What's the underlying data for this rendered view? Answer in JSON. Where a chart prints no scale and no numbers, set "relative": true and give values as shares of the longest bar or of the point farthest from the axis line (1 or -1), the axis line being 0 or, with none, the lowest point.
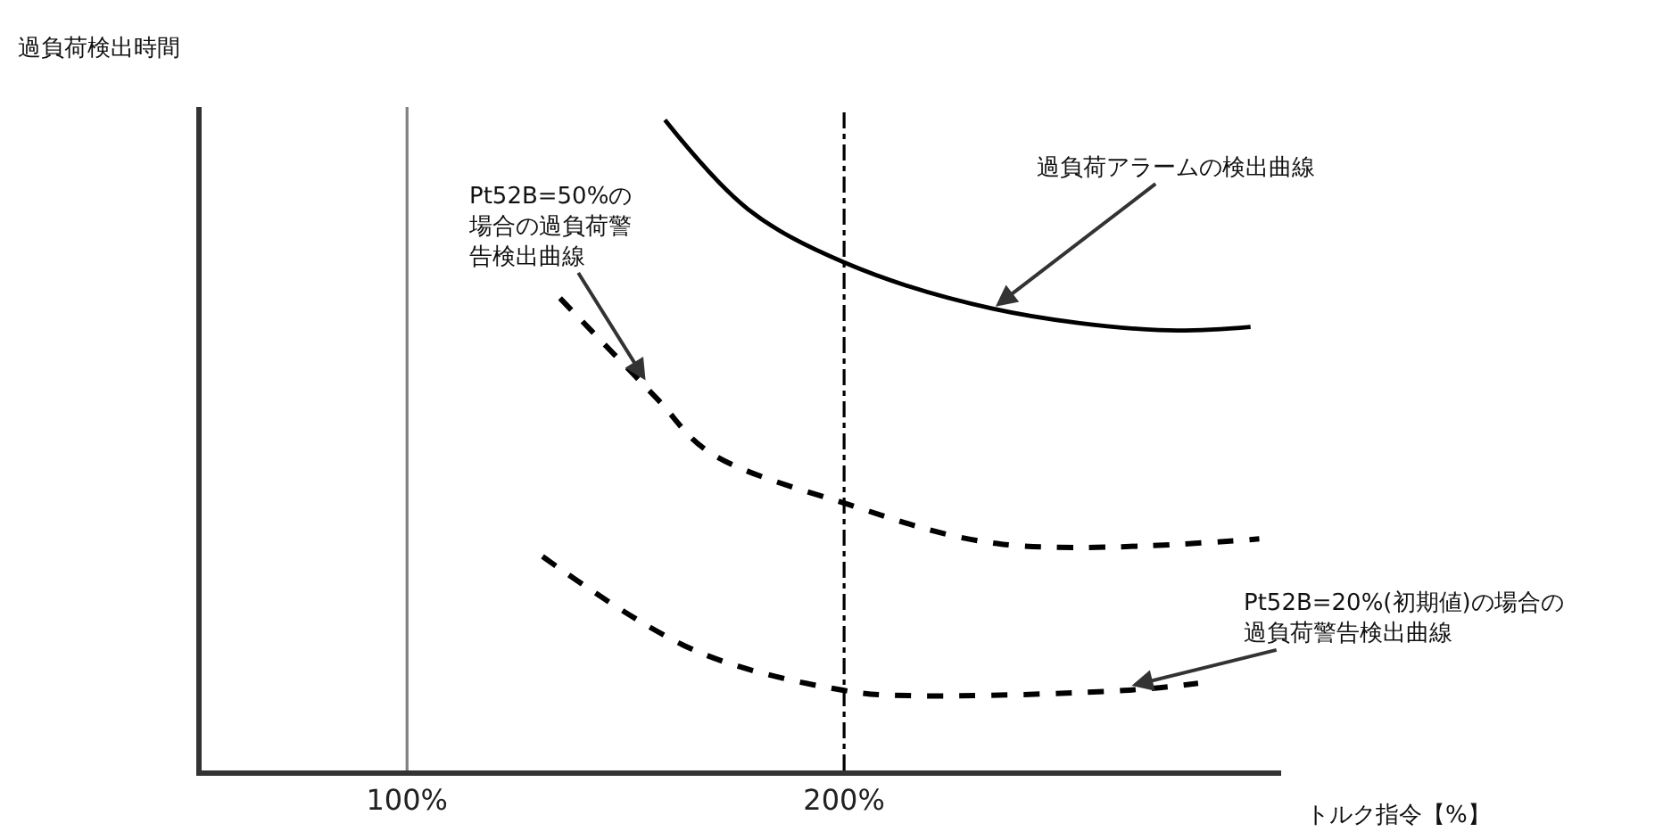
{
  "chart_data": {
    "type": "line",
    "relative": true,
    "xlabel": "トルク指令【%】",
    "ylabel": "過負荷検出時間",
    "xlim": [
      53,
      300
    ],
    "xticks": [
      {
        "value": 100,
        "label": "100%"
      },
      {
        "value": 200,
        "label": "200%"
      }
    ],
    "series": [
      {
        "color": "#000000",
        "line_style": "solid",
        "x": [
          159,
          178,
          200,
          234,
          272,
          293
        ],
        "values": [
          1,
          0.863,
          0.781,
          0.71,
          0.677,
          0.682
        ]
      },
      {
        "color": "#000000",
        "line_style": "dashed",
        "x": [
          135,
          157,
          169,
          200,
          236,
          295
        ],
        "values": [
          0.726,
          0.573,
          0.49,
          0.411,
          0.348,
          0.356
        ]
      },
      {
        "color": "#000000",
        "line_style": "dashed",
        "x": [
          131,
          166,
          200,
          215,
          264,
          281
        ],
        "values": [
          0.329,
          0.184,
          0.123,
          0.115,
          0.123,
          0.134
        ]
      }
    ],
    "ref_lines": [
      {
        "axis": "x",
        "value": 100,
        "color": "#808080",
        "line_style": "solid"
      },
      {
        "axis": "x",
        "value": 200,
        "color": "#000000",
        "line_style": "dashdot"
      }
    ],
    "annotations": [
      {
        "text": "過負荷アラームの検出曲線",
        "x": 234,
        "y": 0.71
      },
      {
        "text": "Pt52B=50%の場合の過負荷警告検出曲線",
        "x": 155,
        "y": 0.595
      },
      {
        "text": "Pt52B=20%(初期値)の場合の過負荷警告検出曲線",
        "x": 265,
        "y": 0.129
      }
    ],
    "marker": "none"
  }
}
